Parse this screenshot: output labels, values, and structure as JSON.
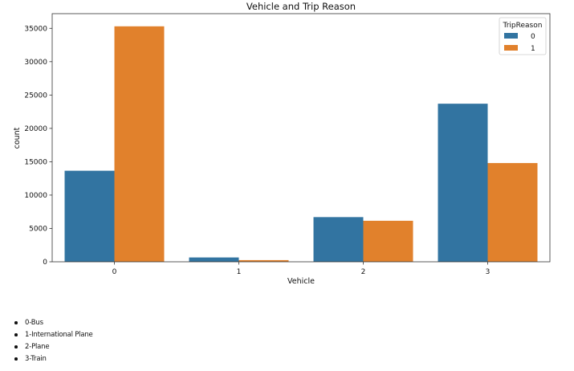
{
  "chart_data": {
    "type": "bar",
    "title": "Vehicle and Trip Reason",
    "xlabel": "Vehicle",
    "ylabel": "count",
    "categories": [
      "0",
      "1",
      "2",
      "3"
    ],
    "series": [
      {
        "name": "0",
        "color": "#3274a1",
        "values": [
          13650,
          650,
          6700,
          23700
        ]
      },
      {
        "name": "1",
        "color": "#e1812c",
        "values": [
          35300,
          250,
          6150,
          14800
        ]
      }
    ],
    "ylim": [
      0,
      37200
    ],
    "yticks": [
      0,
      5000,
      10000,
      15000,
      20000,
      25000,
      30000,
      35000
    ],
    "grid": false,
    "legend": {
      "title": "TripReason",
      "position": "top-right"
    }
  },
  "notes": [
    "0-Bus",
    "1-International Plane",
    "2-Plane",
    "3-Train"
  ]
}
